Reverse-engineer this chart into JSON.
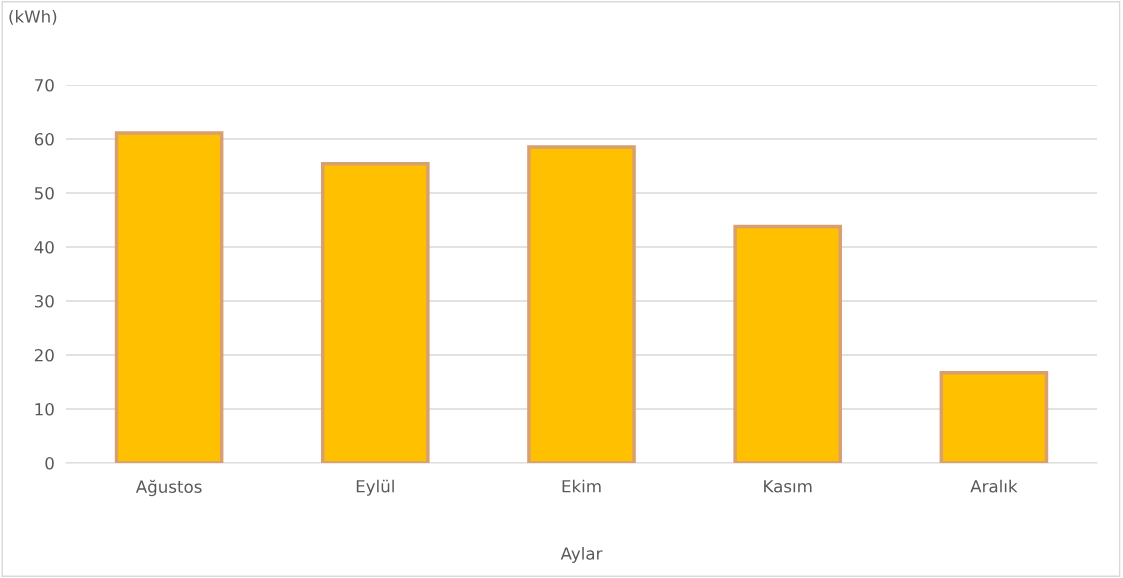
{
  "chart_data": {
    "type": "bar",
    "ylabel": "(kWh)",
    "xlabel": "Aylar",
    "categories": [
      "Ağustos",
      "Eylül",
      "Ekim",
      "Kasım",
      "Aralık"
    ],
    "values": [
      61.1,
      55.4,
      58.5,
      43.8,
      16.7
    ],
    "color": "#ffc000",
    "ylim": [
      0,
      70
    ],
    "yticks": [
      0,
      10,
      20,
      30,
      40,
      50,
      60,
      70
    ],
    "grid": "y"
  }
}
